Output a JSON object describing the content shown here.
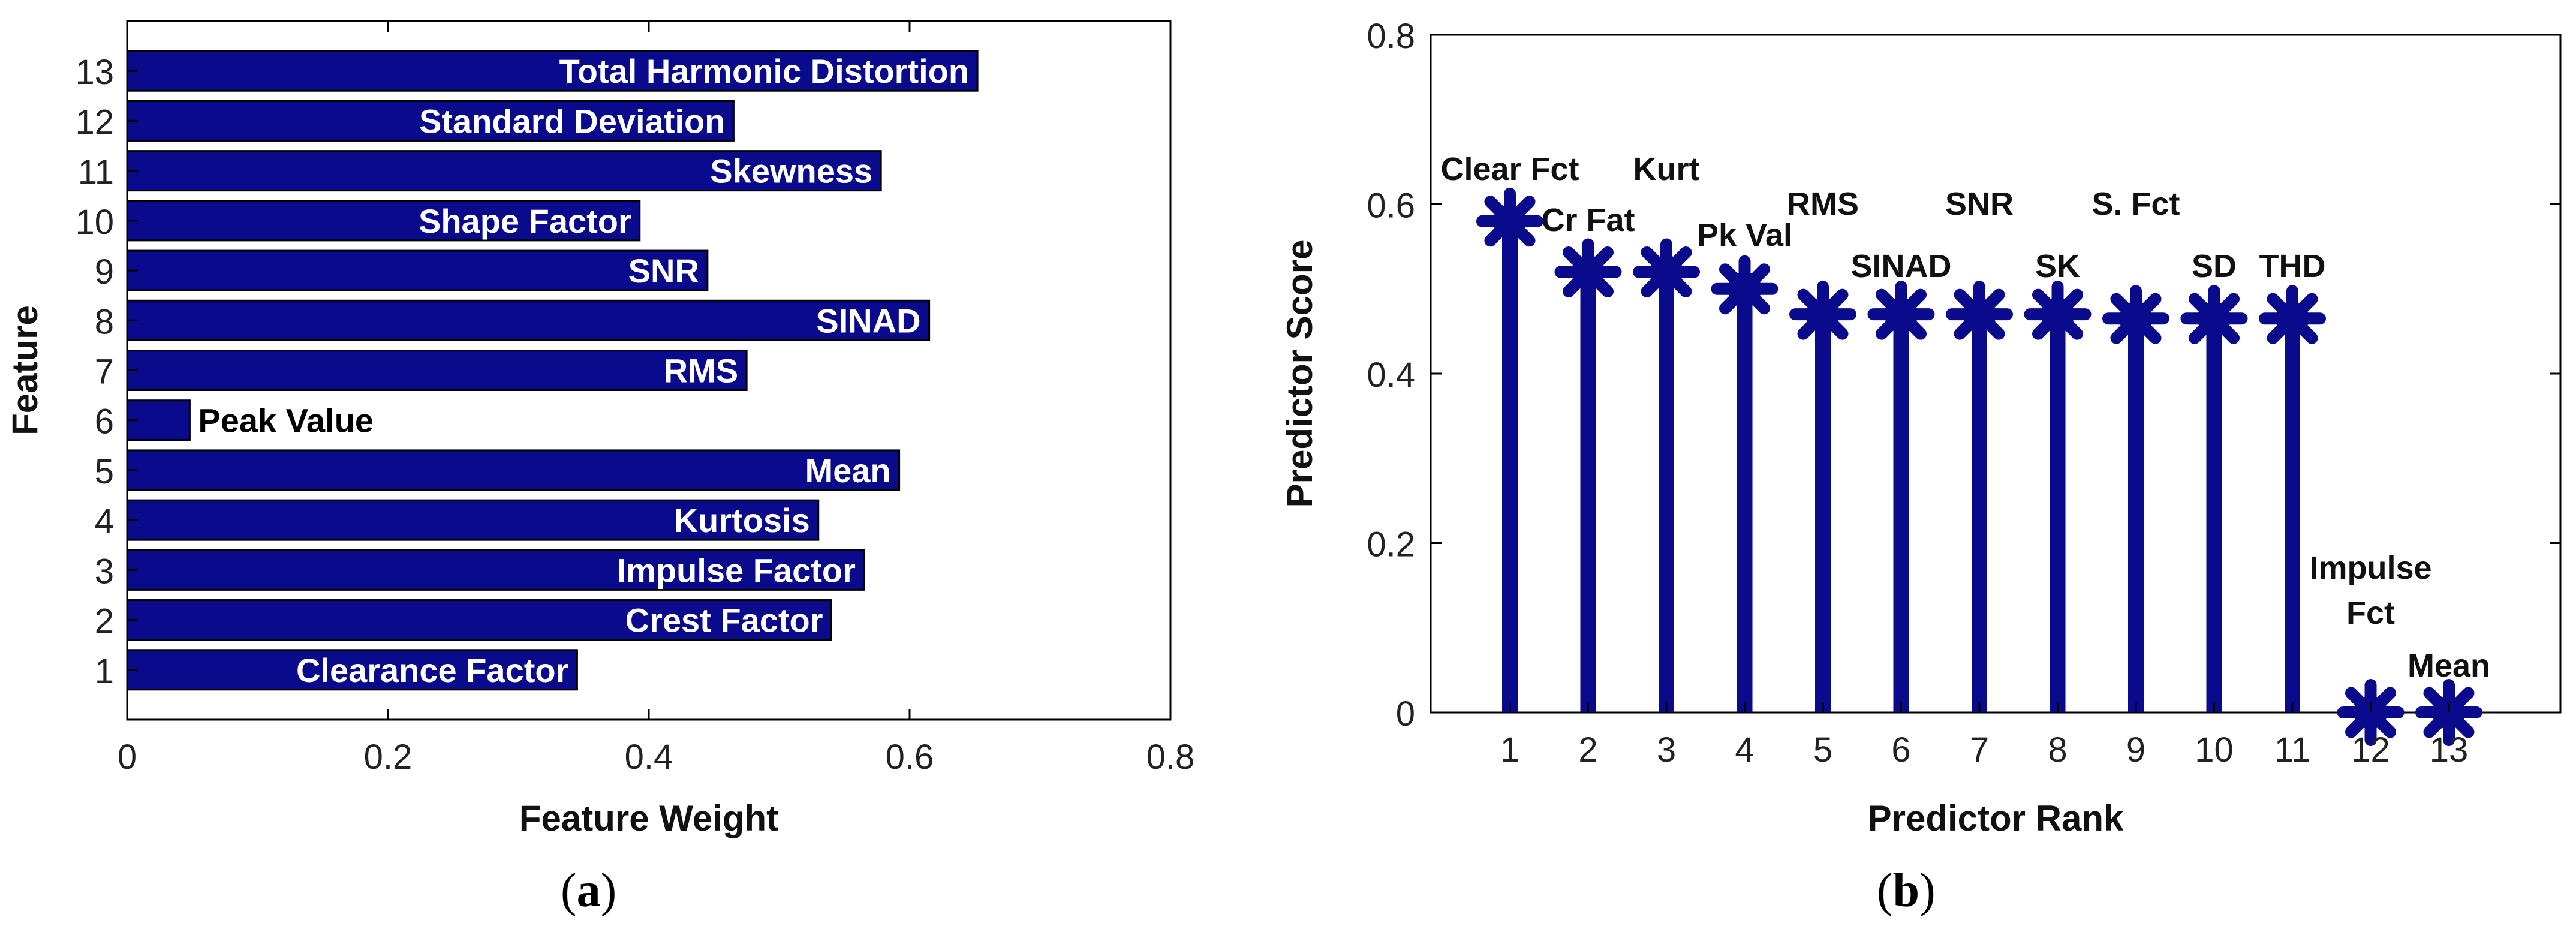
{
  "chart_data": [
    {
      "type": "bar",
      "orientation": "horizontal",
      "panel_label": "a",
      "xlabel": "Feature Weight",
      "ylabel": "Feature",
      "xlim": [
        0,
        0.8
      ],
      "xticks": [
        "0",
        "0.2",
        "0.4",
        "0.6",
        "0.8"
      ],
      "categories": [
        "1",
        "2",
        "3",
        "4",
        "5",
        "6",
        "7",
        "8",
        "9",
        "10",
        "11",
        "12",
        "13"
      ],
      "values": [
        0.345,
        0.54,
        0.565,
        0.53,
        0.592,
        0.048,
        0.475,
        0.615,
        0.445,
        0.393,
        0.578,
        0.465,
        0.652
      ],
      "bar_labels": [
        "Clearance Factor",
        "Crest Factor",
        "Impulse Factor",
        "Kurtosis",
        "Mean",
        "Peak Value",
        "RMS",
        "SINAD",
        "SNR",
        "Shape Factor",
        "Skewness",
        "Standard Deviation",
        "Total Harmonic Distortion"
      ],
      "bar_color": "#0a0a8c",
      "label_color_inside": "#ffffff",
      "label_color_outside": "#000000"
    },
    {
      "type": "stem",
      "panel_label": "b",
      "xlabel": "Predictor Rank",
      "ylabel": "Predictor Score",
      "ylim": [
        0,
        0.8
      ],
      "yticks": [
        "0",
        "0.2",
        "0.4",
        "0.6",
        "0.8"
      ],
      "categories": [
        "1",
        "2",
        "3",
        "4",
        "5",
        "6",
        "7",
        "8",
        "9",
        "10",
        "11",
        "12",
        "13"
      ],
      "values": [
        0.58,
        0.52,
        0.52,
        0.5,
        0.47,
        0.47,
        0.47,
        0.47,
        0.465,
        0.465,
        0.465,
        0.0,
        0.0
      ],
      "point_labels": [
        "Clear Fct",
        "Cr Fat",
        "Kurt",
        "Pk Val",
        "RMS",
        "SINAD",
        "SNR",
        "SK",
        "S. Fct",
        "SD",
        "THD",
        "Impulse\nFct",
        "Mean"
      ],
      "stem_color": "#0a0a8c"
    }
  ]
}
